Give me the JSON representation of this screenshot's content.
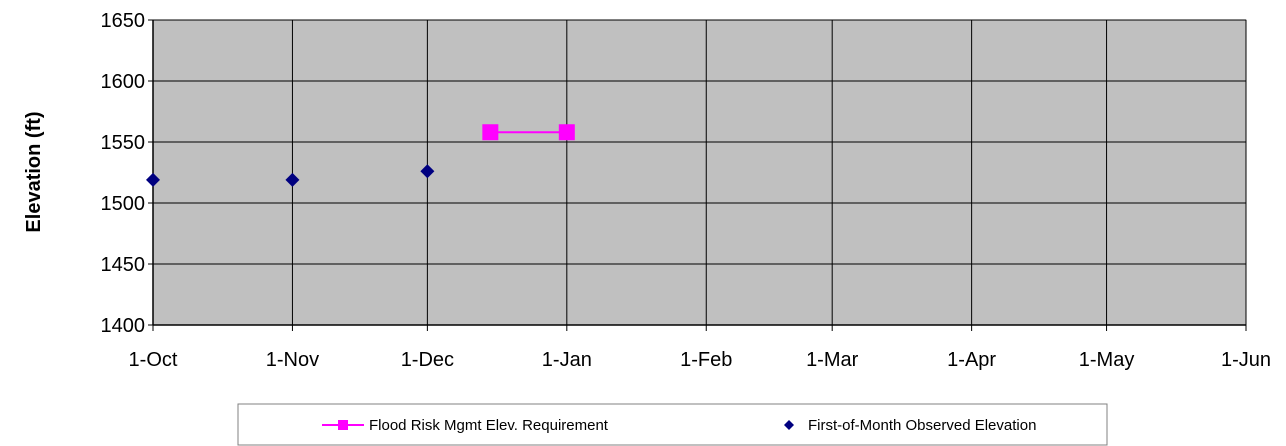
{
  "chart_data": {
    "type": "line",
    "ylabel": "Elevation (ft)",
    "xlabel": "",
    "ylim": [
      1400,
      1650
    ],
    "y_ticks": [
      "1400",
      "1450",
      "1500",
      "1550",
      "1600",
      "1650"
    ],
    "x_ticks": [
      "1-Oct",
      "1-Nov",
      "1-Dec",
      "1-Jan",
      "1-Feb",
      "1-Mar",
      "1-Apr",
      "1-May",
      "1-Jun"
    ],
    "xlim": [
      "1-Oct",
      "1-Jun"
    ],
    "grid": true,
    "legend_position": "bottom",
    "series": [
      {
        "name": "Flood Risk Mgmt Elev. Requirement",
        "marker": "square",
        "line": true,
        "color": "#ff00ff",
        "points": [
          {
            "x": "15-Dec",
            "y": 1558
          },
          {
            "x": "1-Jan",
            "y": 1558
          }
        ]
      },
      {
        "name": "First-of-Month Observed Elevation",
        "marker": "diamond",
        "line": false,
        "color": "#000080",
        "points": [
          {
            "x": "1-Oct",
            "y": 1519
          },
          {
            "x": "1-Nov",
            "y": 1519
          },
          {
            "x": "1-Dec",
            "y": 1526
          }
        ]
      }
    ],
    "colors": {
      "plot_background": "#c0c0c0",
      "gridline": "#000000"
    }
  }
}
